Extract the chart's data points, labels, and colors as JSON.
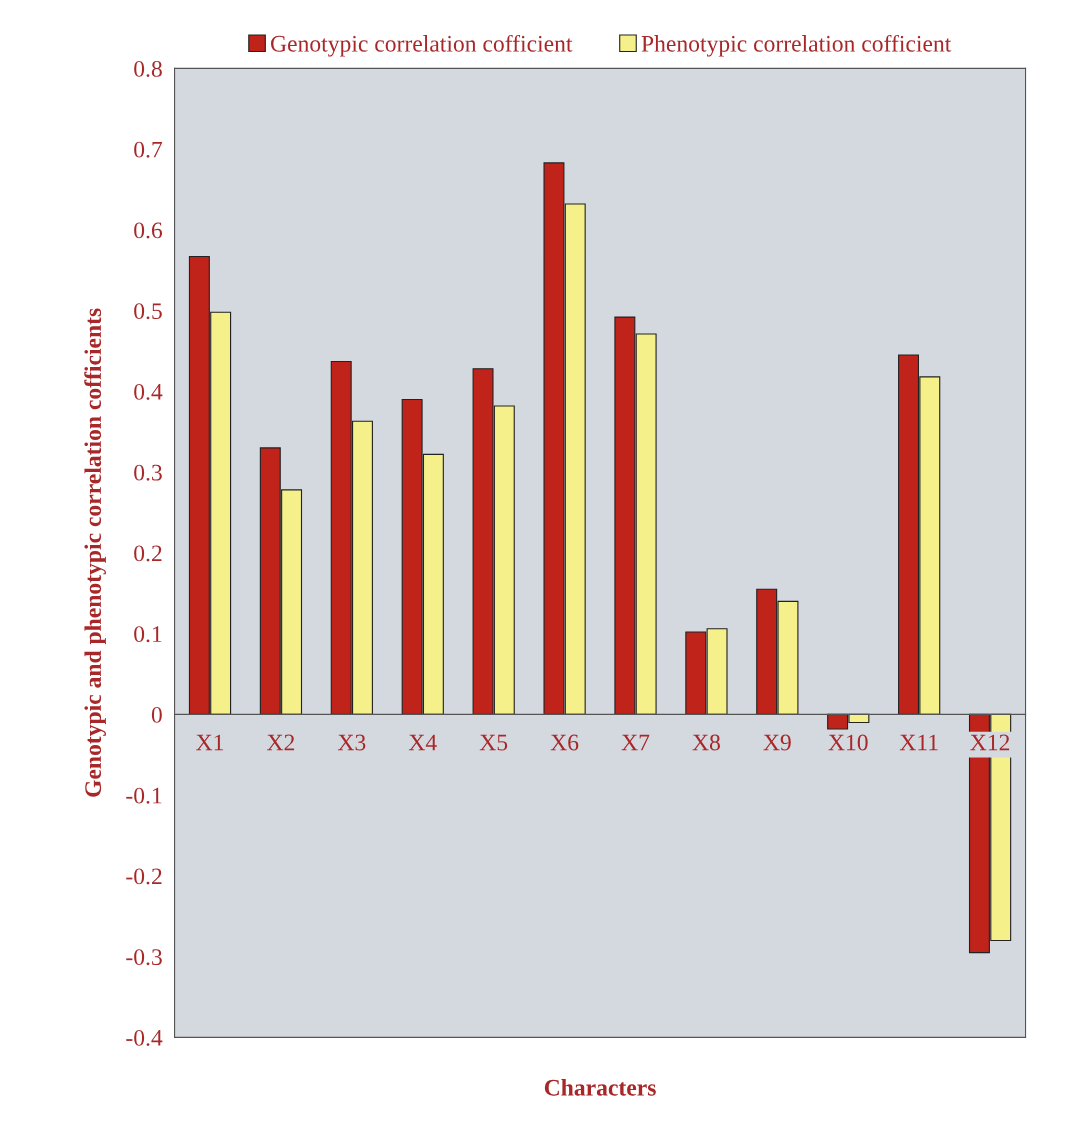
{
  "chart_data": {
    "type": "bar",
    "xlabel": "Characters",
    "ylabel": "Genotypic and phenotypic correlation cofficients",
    "categories": [
      "X1",
      "X2",
      "X3",
      "X4",
      "X5",
      "X6",
      "X7",
      "X8",
      "X9",
      "X10",
      "X11",
      "X12"
    ],
    "series": [
      {
        "name": "Genotypic correlation cofficient",
        "color": "#c0231a",
        "values": [
          0.567,
          0.33,
          0.437,
          0.39,
          0.428,
          0.683,
          0.492,
          0.102,
          0.155,
          -0.018,
          0.445,
          -0.295
        ]
      },
      {
        "name": "Phenotypic correlation cofficient",
        "color": "#f5f08a",
        "values": [
          0.498,
          0.278,
          0.363,
          0.322,
          0.382,
          0.632,
          0.471,
          0.106,
          0.14,
          -0.01,
          0.418,
          -0.28
        ]
      }
    ],
    "ylim": [
      -0.4,
      0.8
    ],
    "yticks": [
      -0.4,
      -0.3,
      -0.2,
      -0.1,
      0,
      0.1,
      0.2,
      0.3,
      0.4,
      0.5,
      0.6,
      0.7,
      0.8
    ],
    "grid": false,
    "legend": "top"
  }
}
